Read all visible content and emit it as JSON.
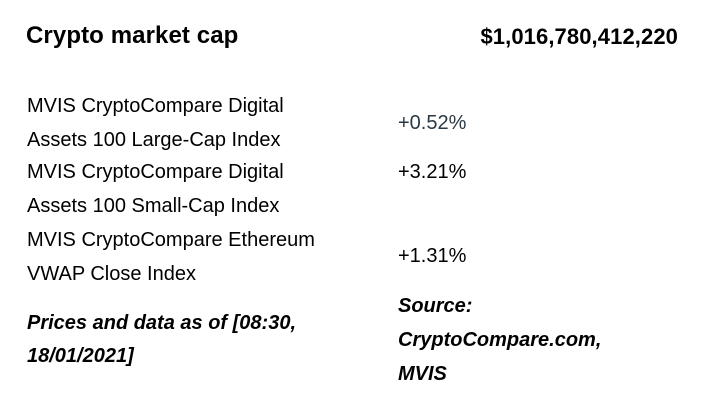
{
  "widget": {
    "title": "Crypto market cap",
    "total_value": "$1,016,780,412,220"
  },
  "indices": [
    {
      "name_line1": "MVIS CryptoCompare Digital",
      "name_line2": "Assets 100 Large-Cap Index",
      "change": "+0.52%"
    },
    {
      "name_line1": "MVIS CryptoCompare Digital",
      "name_line2": "Assets 100 Small-Cap Index",
      "change": "+3.21%"
    },
    {
      "name_line1": "MVIS CryptoCompare Ethereum",
      "name_line2": "VWAP Close Index",
      "change": "+1.31%"
    }
  ],
  "footer": {
    "timestamp_line1": "Prices and data as of [08:30,",
    "timestamp_line2": "18/01/2021]",
    "source_line1": "Source:",
    "source_line2": "CryptoCompare.com,",
    "source_line3": "MVIS"
  },
  "colors": {
    "text": "#000000",
    "positive_change_first": "#2b3942",
    "background": "#ffffff"
  }
}
